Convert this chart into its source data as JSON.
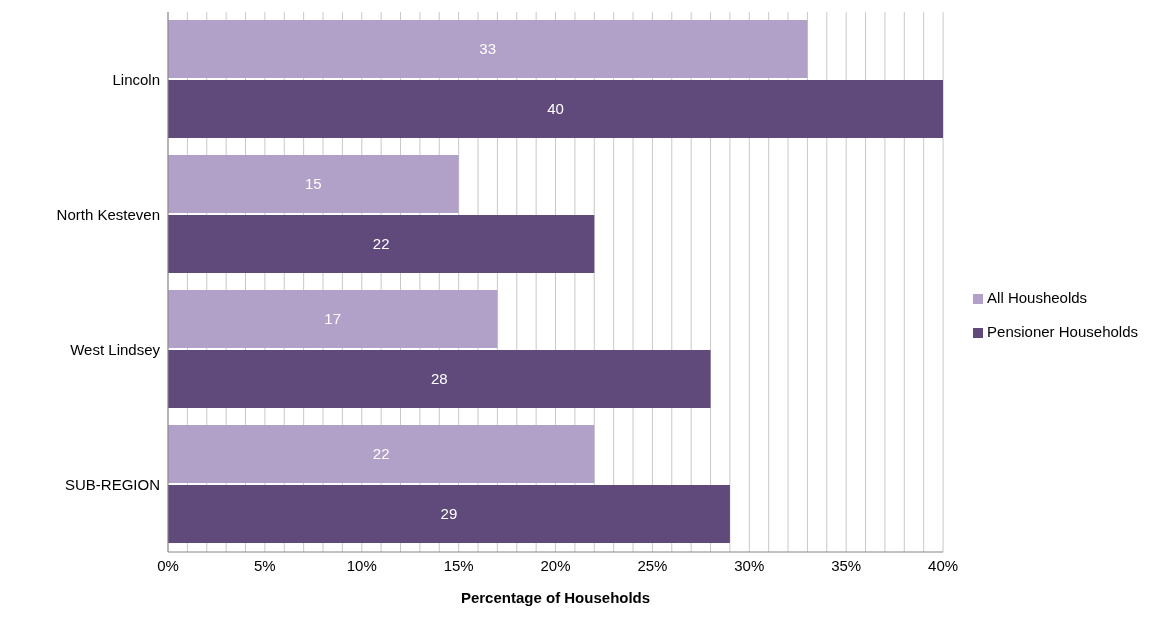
{
  "chart_data": {
    "type": "bar",
    "orientation": "horizontal",
    "xlabel": "Percentage of Households",
    "categories": [
      "Lincoln",
      "North Kesteven",
      "West Lindsey",
      "SUB-REGION"
    ],
    "series": [
      {
        "name": "All Housheolds",
        "color": "#b1a0c7",
        "values": [
          33,
          15,
          17,
          22
        ]
      },
      {
        "name": "Pensioner Households",
        "color": "#604a7b",
        "values": [
          40,
          22,
          28,
          29
        ]
      }
    ],
    "xlim": [
      0,
      40
    ],
    "xticks": [
      {
        "value": 0,
        "label": "0%"
      },
      {
        "value": 1,
        "label": null
      },
      {
        "value": 2,
        "label": null
      },
      {
        "value": 3,
        "label": null
      },
      {
        "value": 4,
        "label": null
      },
      {
        "value": 5,
        "label": "5%"
      },
      {
        "value": 6,
        "label": null
      },
      {
        "value": 7,
        "label": null
      },
      {
        "value": 8,
        "label": null
      },
      {
        "value": 9,
        "label": null
      },
      {
        "value": 10,
        "label": "10%"
      },
      {
        "value": 11,
        "label": null
      },
      {
        "value": 12,
        "label": null
      },
      {
        "value": 13,
        "label": null
      },
      {
        "value": 14,
        "label": null
      },
      {
        "value": 15,
        "label": "15%"
      },
      {
        "value": 16,
        "label": null
      },
      {
        "value": 17,
        "label": null
      },
      {
        "value": 18,
        "label": null
      },
      {
        "value": 19,
        "label": null
      },
      {
        "value": 20,
        "label": "20%"
      },
      {
        "value": 21,
        "label": null
      },
      {
        "value": 22,
        "label": null
      },
      {
        "value": 23,
        "label": null
      },
      {
        "value": 24,
        "label": null
      },
      {
        "value": 25,
        "label": "25%"
      },
      {
        "value": 26,
        "label": null
      },
      {
        "value": 27,
        "label": null
      },
      {
        "value": 28,
        "label": null
      },
      {
        "value": 29,
        "label": null
      },
      {
        "value": 30,
        "label": "30%"
      },
      {
        "value": 31,
        "label": null
      },
      {
        "value": 32,
        "label": null
      },
      {
        "value": 33,
        "label": null
      },
      {
        "value": 34,
        "label": null
      },
      {
        "value": 35,
        "label": "35%"
      },
      {
        "value": 36,
        "label": null
      },
      {
        "value": 37,
        "label": null
      },
      {
        "value": 38,
        "label": null
      },
      {
        "value": 39,
        "label": null
      },
      {
        "value": 40,
        "label": "40%"
      }
    ],
    "grid": "x",
    "legend": "right",
    "data_labels": true
  }
}
